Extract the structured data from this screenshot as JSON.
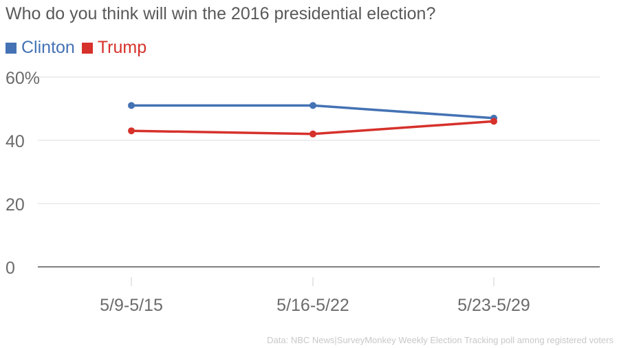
{
  "chart_data": {
    "type": "line",
    "title": "Who do you think will win the 2016 presidential election?",
    "categories": [
      "5/9-5/15",
      "5/16-5/22",
      "5/23-5/29"
    ],
    "series": [
      {
        "name": "Clinton",
        "color": "#4472b4",
        "values": [
          51,
          51,
          47
        ]
      },
      {
        "name": "Trump",
        "color": "#d6312b",
        "values": [
          43,
          42,
          46
        ]
      }
    ],
    "y_ticks": [
      "60%",
      "40",
      "20",
      "0"
    ],
    "y_tick_values": [
      60,
      40,
      20,
      0
    ],
    "ylim": [
      0,
      60
    ],
    "xlabel": "",
    "ylabel": "",
    "grid": true,
    "legend_position": "top-left",
    "source": "Data: NBC News|SurveyMonkey Weekly Election Tracking poll among registered voters"
  },
  "colors": {
    "title_text": "#595959",
    "axis_text": "#6b6b6b",
    "gridline": "#dcdcdc",
    "baseline": "#333333",
    "source_text": "#c8c8c8"
  }
}
